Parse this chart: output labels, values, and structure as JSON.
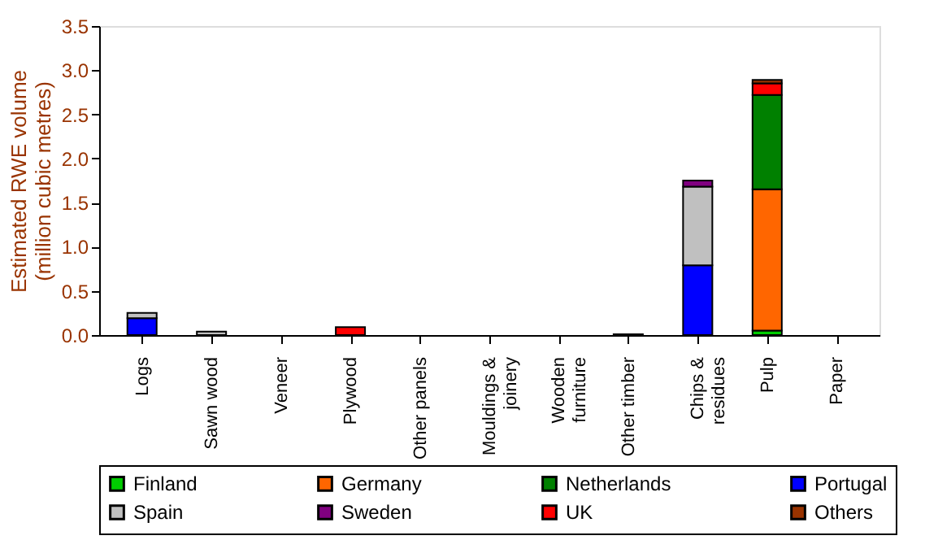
{
  "chart_data": {
    "type": "bar",
    "stacked": true,
    "ylabel": "Estimated RWE volume (million cubic metres)",
    "categories": [
      "Logs",
      "Sawn wood",
      "Veneer",
      "Plywood",
      "Other panels",
      "Mouldings & joinery",
      "Wooden furniture",
      "Other timber",
      "Chips & residues",
      "Pulp",
      "Paper"
    ],
    "series": [
      {
        "name": "Finland",
        "color": "#00cc00",
        "values": [
          null,
          null,
          null,
          null,
          null,
          null,
          null,
          null,
          null,
          0.05,
          null
        ]
      },
      {
        "name": "Germany",
        "color": "#ff6600",
        "values": [
          null,
          null,
          null,
          null,
          null,
          null,
          null,
          null,
          null,
          1.6,
          null
        ]
      },
      {
        "name": "Netherlands",
        "color": "#008000",
        "values": [
          null,
          null,
          null,
          null,
          null,
          null,
          null,
          null,
          null,
          1.07,
          null
        ]
      },
      {
        "name": "Portugal",
        "color": "#0000ff",
        "values": [
          0.19,
          null,
          null,
          null,
          null,
          null,
          null,
          null,
          0.79,
          null,
          null
        ]
      },
      {
        "name": "Spain",
        "color": "#c0c0c0",
        "values": [
          0.06,
          0.04,
          null,
          null,
          null,
          null,
          null,
          null,
          0.89,
          null,
          null
        ]
      },
      {
        "name": "Sweden",
        "color": "#800080",
        "values": [
          null,
          null,
          null,
          null,
          null,
          null,
          null,
          null,
          0.07,
          null,
          null
        ]
      },
      {
        "name": "UK",
        "color": "#ff0000",
        "values": [
          null,
          null,
          null,
          0.09,
          null,
          null,
          null,
          null,
          null,
          0.13,
          null
        ]
      },
      {
        "name": "Others",
        "color": "#993300",
        "values": [
          null,
          null,
          null,
          null,
          null,
          null,
          null,
          0.01,
          null,
          0.04,
          null
        ]
      }
    ],
    "ylim": [
      0,
      3.5
    ],
    "yticks": [
      {
        "value": 0,
        "label": "0.0"
      },
      {
        "value": 0.5,
        "label": "0.5"
      },
      {
        "value": 1,
        "label": "1.0"
      },
      {
        "value": 1.5,
        "label": "1.5"
      },
      {
        "value": 2,
        "label": "2.0"
      },
      {
        "value": 2.5,
        "label": "2.5"
      },
      {
        "value": 3,
        "label": "3.0"
      },
      {
        "value": 3.5,
        "label": "3.5"
      }
    ],
    "grid": false,
    "legend": "bottom"
  }
}
